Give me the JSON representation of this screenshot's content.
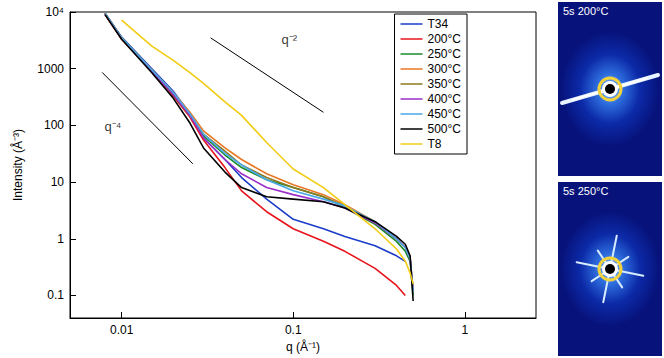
{
  "chart_data": {
    "type": "line",
    "x_label": "q (Å⁻¹)",
    "y_label": "Intensity (Å⁻³)",
    "log": true,
    "legend": "top-right",
    "xlim": [
      0.005,
      2.6
    ],
    "xticks": [
      0.01,
      0.1,
      1
    ],
    "ylim": [
      0.04,
      10000
    ],
    "yticks": [
      {
        "value": 10000,
        "label": "10⁴"
      },
      1000,
      100,
      10,
      1,
      0.1
    ],
    "x": [
      0.008,
      0.01,
      0.015,
      0.02,
      0.025,
      0.03,
      0.04,
      0.05,
      0.07,
      0.1,
      0.15,
      0.2,
      0.3,
      0.4,
      0.45,
      0.48,
      0.5
    ],
    "series": [
      {
        "name": "T34",
        "color": "#1a3cc8",
        "values": [
          9500,
          3600,
          1000,
          400,
          160,
          60,
          25,
          12,
          5,
          2.2,
          1.5,
          1.1,
          0.75,
          0.5,
          0.4,
          null,
          null
        ]
      },
      {
        "name": "200°C",
        "color": "#e8141c",
        "values": [
          9000,
          3300,
          900,
          330,
          140,
          55,
          18,
          7,
          3,
          1.5,
          0.9,
          0.6,
          0.3,
          0.15,
          0.1,
          null,
          null
        ]
      },
      {
        "name": "250°C",
        "color": "#1a8a2a",
        "values": [
          9500,
          3500,
          950,
          350,
          150,
          65,
          30,
          18,
          11,
          8,
          5.5,
          3.5,
          1.8,
          0.9,
          0.6,
          0.4,
          0.1
        ]
      },
      {
        "name": "300°C",
        "color": "#e87722",
        "values": [
          9500,
          3500,
          950,
          380,
          170,
          80,
          40,
          25,
          14,
          9,
          6,
          4,
          2,
          1,
          0.7,
          0.45,
          0.12
        ]
      },
      {
        "name": "350°C",
        "color": "#8c7a1e",
        "values": [
          9200,
          3400,
          900,
          350,
          150,
          70,
          35,
          20,
          12,
          8,
          5.5,
          3.8,
          1.9,
          1,
          0.7,
          0.45,
          0.12
        ]
      },
      {
        "name": "400°C",
        "color": "#9a2fc8",
        "values": [
          9300,
          3400,
          900,
          350,
          150,
          60,
          25,
          14,
          8,
          6,
          4.5,
          3.5,
          1.9,
          1,
          0.7,
          0.45,
          0.12
        ]
      },
      {
        "name": "450°C",
        "color": "#4aa8e8",
        "values": [
          9400,
          3500,
          950,
          380,
          160,
          70,
          32,
          20,
          11,
          7,
          5,
          3.8,
          2,
          1,
          0.7,
          0.45,
          0.12
        ]
      },
      {
        "name": "500°C",
        "color": "#000000",
        "values": [
          9000,
          3300,
          850,
          300,
          110,
          40,
          15,
          8,
          5.5,
          5,
          4.5,
          3.5,
          2,
          1.1,
          0.8,
          0.5,
          0.08
        ]
      },
      {
        "name": "T8",
        "color": "#f2cc14",
        "values": [
          null,
          7200,
          2500,
          1400,
          850,
          550,
          260,
          150,
          50,
          17,
          8,
          4,
          1.5,
          0.66,
          0.4,
          0.25,
          0.16
        ]
      }
    ],
    "annotations": [
      {
        "text": "q⁻²",
        "x": 0.095,
        "y": 3300,
        "line": {
          "x": [
            0.033,
            0.15
          ],
          "y": [
            3500,
            170
          ]
        }
      },
      {
        "text": "q⁻⁴",
        "x": 0.0089,
        "y": 95,
        "line": {
          "x": [
            0.0077,
            0.026
          ],
          "y": [
            860,
            21
          ]
        }
      }
    ]
  },
  "images": [
    {
      "label": "5s 200°C"
    },
    {
      "label": "5s 250°C"
    }
  ]
}
